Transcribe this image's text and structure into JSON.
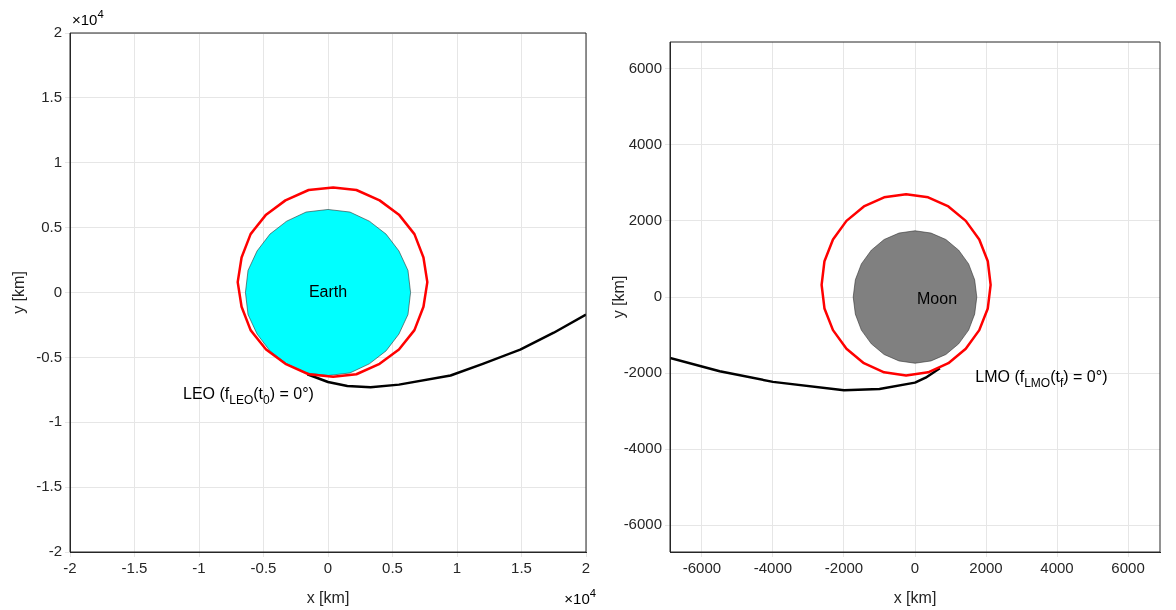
{
  "chart_data": [
    {
      "type": "line",
      "xlabel": "x [km]",
      "ylabel": "y [km]",
      "xlim": [
        -2,
        2
      ],
      "ylim": [
        -2,
        2
      ],
      "xticks": [
        -2,
        -1.5,
        -1,
        -0.5,
        0,
        0.5,
        1,
        1.5,
        2
      ],
      "yticks": [
        -2,
        -1.5,
        -1,
        -0.5,
        0,
        0.5,
        1,
        1.5,
        2
      ],
      "grid": true,
      "series": [
        {
          "type": "area",
          "color": "#00ffff",
          "x": [
            0.64,
            0.62,
            0.55,
            0.45,
            0.32,
            0.17,
            0,
            -0.17,
            -0.32,
            -0.45,
            -0.55,
            -0.62,
            -0.64,
            -0.62,
            -0.55,
            -0.45,
            -0.32,
            -0.17,
            0,
            0.17,
            0.32,
            0.45,
            0.55,
            0.62,
            0.64
          ],
          "values": [
            0,
            0.17,
            0.32,
            0.45,
            0.55,
            0.62,
            0.64,
            0.62,
            0.55,
            0.45,
            0.32,
            0.17,
            0,
            -0.17,
            -0.32,
            -0.45,
            -0.55,
            -0.62,
            -0.64,
            -0.62,
            -0.55,
            -0.45,
            -0.32,
            -0.17,
            0
          ]
        },
        {
          "type": "line",
          "color": "#ff0000",
          "x": [
            0.77,
            0.74,
            0.67,
            0.55,
            0.4,
            0.22,
            0.04,
            -0.15,
            -0.33,
            -0.48,
            -0.6,
            -0.67,
            -0.7,
            -0.67,
            -0.6,
            -0.48,
            -0.33,
            -0.15,
            0.04,
            0.22,
            0.4,
            0.55,
            0.67,
            0.74,
            0.77,
            0.74
          ],
          "values": [
            0.08,
            0.27,
            0.45,
            0.6,
            0.71,
            0.79,
            0.81,
            0.79,
            0.71,
            0.6,
            0.45,
            0.27,
            0.08,
            -0.11,
            -0.29,
            -0.44,
            -0.55,
            -0.63,
            -0.65,
            -0.63,
            -0.55,
            -0.44,
            -0.29,
            -0.11,
            0.08,
            0.27
          ]
        },
        {
          "type": "line",
          "color": "#000000",
          "x": [
            -0.16,
            0,
            0.15,
            0.33,
            0.55,
            0.95,
            1.2,
            1.49,
            1.75,
            2
          ],
          "values": [
            -0.63,
            -0.69,
            -0.72,
            -0.73,
            -0.71,
            -0.64,
            -0.55,
            -0.44,
            -0.31,
            -0.17
          ]
        }
      ],
      "annotations": [
        "×10$^{4}$",
        "×10$^{4}$",
        "Earth",
        "LEO (f$_{LEO}$(t$_{0}$) = 0°)"
      ]
    },
    {
      "type": "line",
      "xlabel": "x [km]",
      "ylabel": "y [km]",
      "xlim": [
        -6900,
        6900
      ],
      "ylim": [
        -6700,
        6700
      ],
      "xticks": [
        -6000,
        -4000,
        -2000,
        0,
        2000,
        4000,
        6000
      ],
      "yticks": [
        -6000,
        -4000,
        -2000,
        0,
        2000,
        4000,
        6000
      ],
      "grid": true,
      "series": [
        {
          "type": "area",
          "color": "#808080",
          "x": [
            1740,
            1680,
            1510,
            1230,
            870,
            450,
            0,
            -450,
            -870,
            -1230,
            -1510,
            -1680,
            -1740,
            -1680,
            -1510,
            -1230,
            -870,
            -450,
            0,
            450,
            870,
            1230,
            1510,
            1680,
            1740
          ],
          "values": [
            0,
            450,
            870,
            1230,
            1510,
            1680,
            1740,
            1680,
            1510,
            1230,
            870,
            450,
            0,
            -450,
            -870,
            -1230,
            -1510,
            -1680,
            -1740,
            -1680,
            -1510,
            -1230,
            -870,
            -450,
            0
          ]
        },
        {
          "type": "line",
          "color": "#ff0000",
          "x": [
            2130,
            2050,
            1810,
            1430,
            940,
            370,
            -250,
            -870,
            -1440,
            -1930,
            -2310,
            -2550,
            -2630,
            -2550,
            -2310,
            -1930,
            -1440,
            -870,
            -250,
            370,
            940,
            1430,
            1810,
            2050,
            2130,
            2050
          ],
          "values": [
            320,
            940,
            1510,
            2000,
            2380,
            2620,
            2700,
            2620,
            2380,
            2000,
            1510,
            940,
            320,
            -300,
            -870,
            -1360,
            -1740,
            -1980,
            -2060,
            -1980,
            -1740,
            -1360,
            -870,
            -300,
            320,
            940
          ]
        },
        {
          "type": "line",
          "color": "#000000",
          "x": [
            -6900,
            -5500,
            -4000,
            -2000,
            -1000,
            0,
            300,
            700
          ],
          "values": [
            -1600,
            -1950,
            -2230,
            -2450,
            -2420,
            -2250,
            -2120,
            -1870
          ]
        }
      ],
      "annotations": [
        "Moon",
        "LMO (f$_{LMO}$(t$_{f}$) = 0°)"
      ]
    }
  ]
}
